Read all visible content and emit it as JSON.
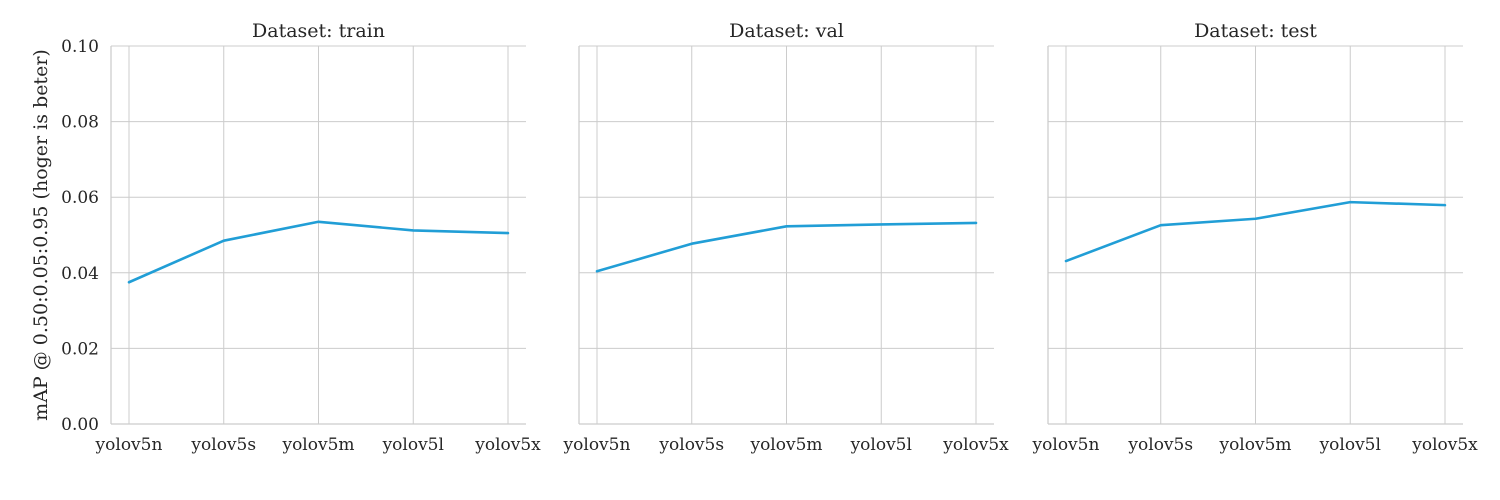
{
  "chart_data": {
    "type": "line",
    "ylabel": "mAP @ 0.50:0.05:0.95 (hoger is beter)",
    "ylim": [
      0,
      0.1
    ],
    "yticks": [
      0.0,
      0.02,
      0.04,
      0.06,
      0.08,
      0.1
    ],
    "ytick_labels": [
      "0.00",
      "0.02",
      "0.04",
      "0.06",
      "0.08",
      "0.10"
    ],
    "categories": [
      "yolov5n",
      "yolov5s",
      "yolov5m",
      "yolov5l",
      "yolov5x"
    ],
    "grid": true,
    "line_color": "#219ed6",
    "panels": [
      {
        "title": "Dataset: train",
        "values": [
          0.0375,
          0.0485,
          0.0535,
          0.0512,
          0.0505
        ]
      },
      {
        "title": "Dataset: val",
        "values": [
          0.0404,
          0.0477,
          0.0523,
          0.0528,
          0.0532
        ]
      },
      {
        "title": "Dataset: test",
        "values": [
          0.0431,
          0.0526,
          0.0543,
          0.0587,
          0.0579
        ]
      }
    ]
  }
}
